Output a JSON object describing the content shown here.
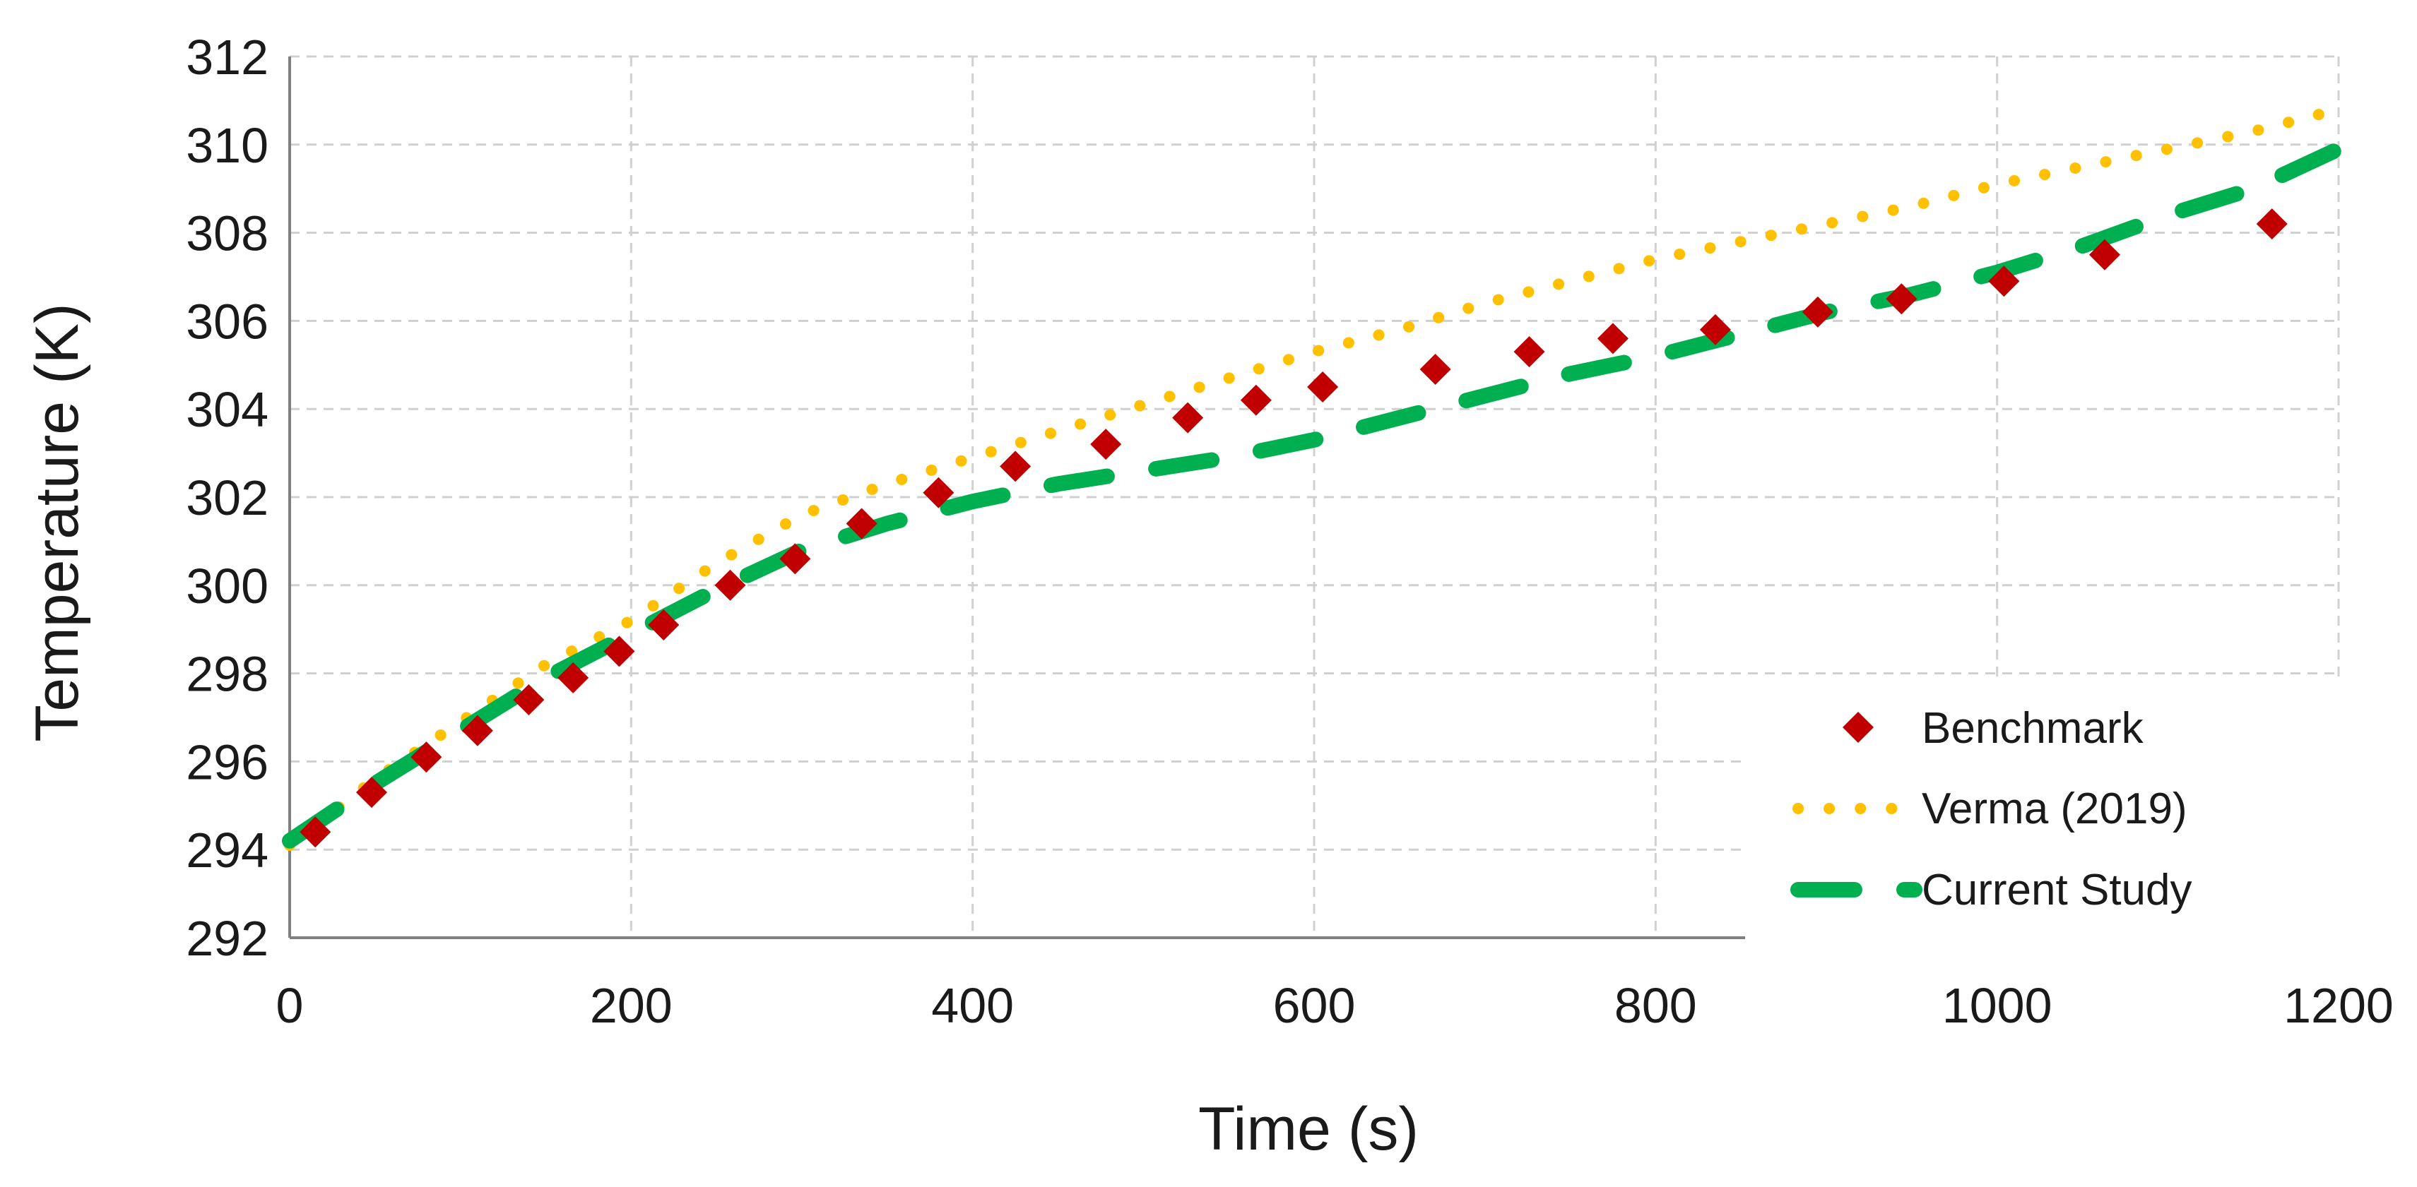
{
  "chart_data": {
    "type": "line",
    "title": "",
    "xlabel": "Time (s)",
    "ylabel": "Temperature (K)",
    "xlim": [
      0,
      1200
    ],
    "ylim": [
      292,
      312
    ],
    "xticks": [
      0,
      200,
      400,
      600,
      800,
      1000,
      1200
    ],
    "yticks": [
      292,
      294,
      296,
      298,
      300,
      302,
      304,
      306,
      308,
      310,
      312
    ],
    "xtick_labels": [
      "0",
      "200",
      "400",
      "600",
      "800",
      "1000",
      "1200"
    ],
    "ytick_labels": [
      "292",
      "294",
      "296",
      "298",
      "300",
      "302",
      "304",
      "306",
      "308",
      "310",
      "312"
    ],
    "grid": true,
    "legend_position": "bottom-right",
    "series": [
      {
        "name": "Benchmark",
        "style": "markers",
        "marker": "diamond",
        "color": "#c00000",
        "x": [
          15,
          48,
          80,
          110,
          140,
          166,
          193,
          219,
          258,
          296,
          335,
          380,
          425,
          478,
          526,
          566,
          605,
          671,
          726,
          775,
          835,
          895,
          944,
          1004,
          1063,
          1161
        ],
        "y": [
          294.4,
          295.3,
          296.1,
          296.7,
          297.4,
          297.9,
          298.5,
          299.1,
          300.0,
          300.6,
          301.4,
          302.1,
          302.7,
          303.2,
          303.8,
          304.2,
          304.5,
          304.9,
          305.3,
          305.6,
          305.8,
          306.2,
          306.5,
          306.9,
          307.5,
          308.2
        ]
      },
      {
        "name": "Verma (2019)",
        "style": "dotted",
        "color": "#ffc000",
        "x": [
          0,
          50,
          100,
          150,
          200,
          250,
          300,
          350,
          400,
          450,
          500,
          550,
          600,
          650,
          700,
          750,
          800,
          850,
          900,
          950,
          1000,
          1050,
          1100,
          1150,
          1200
        ],
        "y": [
          294.1,
          295.6,
          296.9,
          298.2,
          299.2,
          300.5,
          301.6,
          302.3,
          302.9,
          303.5,
          304.1,
          304.7,
          305.3,
          305.8,
          306.4,
          306.9,
          307.4,
          307.8,
          308.2,
          308.6,
          309.1,
          309.5,
          309.9,
          310.3,
          310.8
        ]
      },
      {
        "name": "Current Study",
        "style": "dashed",
        "color": "#00b050",
        "x": [
          0,
          50,
          100,
          150,
          200,
          250,
          300,
          350,
          400,
          450,
          500,
          550,
          600,
          650,
          700,
          750,
          800,
          850,
          900,
          950,
          1000,
          1050,
          1100,
          1150,
          1200
        ],
        "y": [
          294.2,
          295.5,
          296.7,
          297.9,
          298.9,
          299.9,
          300.8,
          301.4,
          301.9,
          302.3,
          302.6,
          302.9,
          303.3,
          303.8,
          304.3,
          304.8,
          305.2,
          305.7,
          306.2,
          306.6,
          307.1,
          307.7,
          308.4,
          309.0,
          309.9
        ]
      }
    ]
  }
}
